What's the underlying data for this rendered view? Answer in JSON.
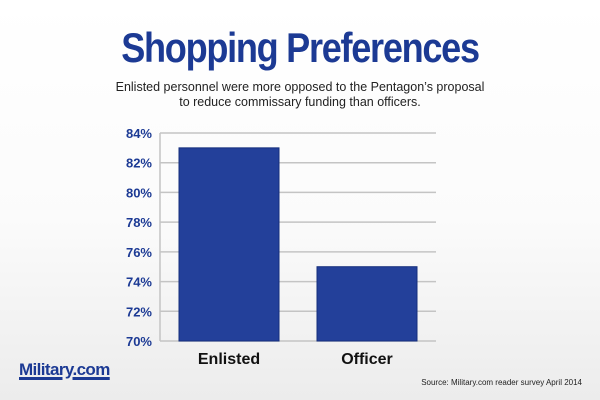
{
  "header": {
    "title": "Shopping Preferences",
    "subtitle_line1": "Enlisted personnel were more opposed to the Pentagon’s proposal",
    "subtitle_line2": "to reduce commissary funding than officers."
  },
  "footer": {
    "logo_text": "Military.com",
    "source": "Source: Military.com reader survey April 2014"
  },
  "colors": {
    "bar": "#23409a",
    "bar_edge": "#142e7c",
    "accent": "#1c3a94",
    "gridline": "#c4c4c4"
  },
  "chart_data": {
    "type": "bar",
    "title": "Shopping Preferences",
    "categories": [
      "Enlisted",
      "Officer"
    ],
    "values": [
      83,
      75
    ],
    "ylim": [
      70,
      84
    ],
    "yticks": [
      70,
      72,
      74,
      76,
      78,
      80,
      82,
      84
    ],
    "ytick_labels": [
      "70%",
      "72%",
      "74%",
      "76%",
      "78%",
      "80%",
      "82%",
      "84%"
    ],
    "xlabel": "",
    "ylabel": "",
    "grid": true,
    "legend": "none"
  }
}
